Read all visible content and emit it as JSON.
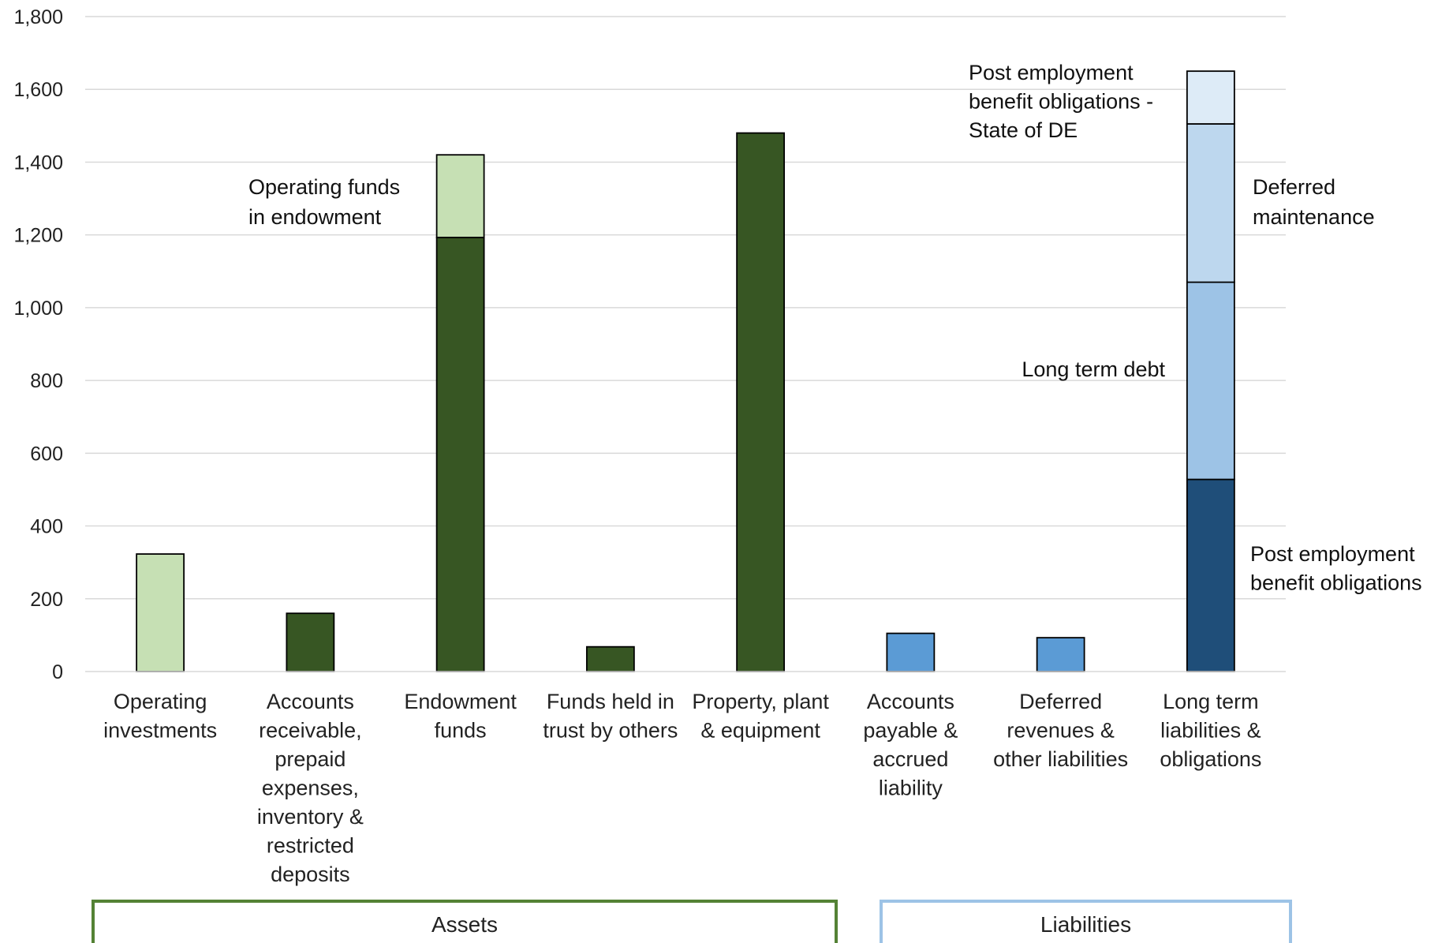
{
  "chart_data": {
    "type": "bar",
    "stacked": true,
    "ylim": [
      0,
      1800
    ],
    "yticks": [
      "0",
      "200",
      "400",
      "600",
      "800",
      "1,000",
      "1,200",
      "1,400",
      "1,600",
      "1,800"
    ],
    "ytick_values": [
      0,
      200,
      400,
      600,
      800,
      1000,
      1200,
      1400,
      1600,
      1800
    ],
    "grid": true,
    "categories": [
      [
        "Operating",
        "investments"
      ],
      [
        "Accounts",
        "receivable,",
        "prepaid",
        "expenses,",
        "inventory &",
        "restricted",
        "deposits"
      ],
      [
        "Endowment",
        "funds"
      ],
      [
        "Funds held in",
        "trust by others"
      ],
      [
        "Property, plant",
        "& equipment"
      ],
      [
        "Accounts",
        "payable &",
        "accrued",
        "liability"
      ],
      [
        "Deferred",
        "revenues &",
        "other liabilities"
      ],
      [
        "Long term",
        "liabilities &",
        "obligations"
      ]
    ],
    "bars": [
      [
        {
          "value": 323,
          "color": "#c6e0b4"
        }
      ],
      [
        {
          "value": 160,
          "color": "#375623"
        }
      ],
      [
        {
          "value": 1193,
          "color": "#375623"
        },
        {
          "value": 227,
          "color": "#c6e0b4"
        }
      ],
      [
        {
          "value": 68,
          "color": "#375623"
        }
      ],
      [
        {
          "value": 1480,
          "color": "#375623"
        }
      ],
      [
        {
          "value": 105,
          "color": "#5b9bd5"
        }
      ],
      [
        {
          "value": 93,
          "color": "#5b9bd5"
        }
      ],
      [
        {
          "value": 528,
          "color": "#1f4e79"
        },
        {
          "value": 542,
          "color": "#9dc3e6"
        },
        {
          "value": 435,
          "color": "#bdd7ee"
        },
        {
          "value": 145,
          "color": "#ddebf7"
        }
      ]
    ],
    "annotations": [
      {
        "lines": [
          "Operating funds",
          "in  endowment"
        ]
      },
      {
        "lines": [
          "Post employment",
          "benefit obligations -",
          "State of DE"
        ]
      },
      {
        "lines": [
          "Deferred",
          "maintenance"
        ]
      },
      {
        "lines": [
          "Long term debt"
        ]
      },
      {
        "lines": [
          "Post employment",
          "benefit obligations"
        ]
      }
    ],
    "groups": [
      {
        "label": "Assets",
        "color": "#548235"
      },
      {
        "label": "Liabilities",
        "color": "#9dc3e6"
      }
    ]
  }
}
